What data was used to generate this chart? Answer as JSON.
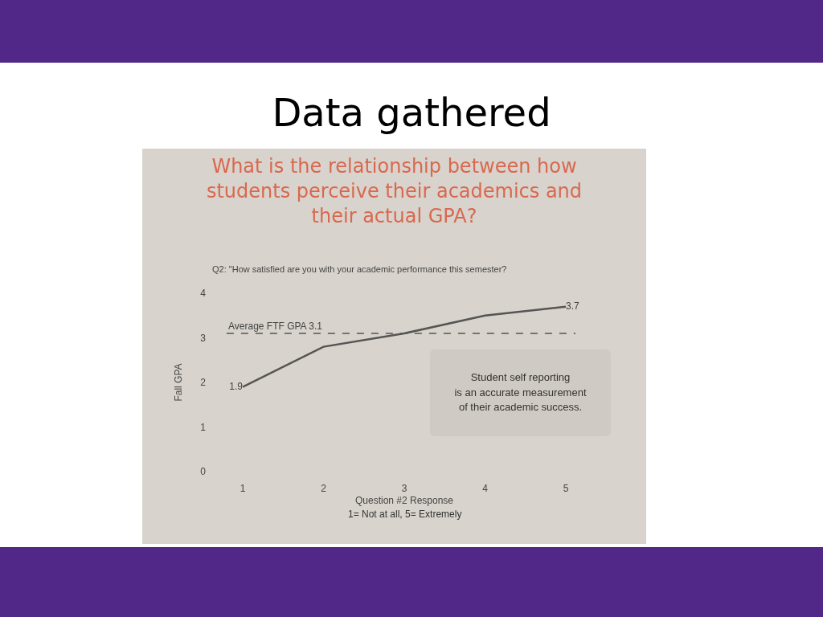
{
  "chart_data": {
    "type": "line",
    "title": "Data gathered",
    "subtitle": "What is the relationship between how\nstudents perceive their academics and\ntheir actual GPA?",
    "xlabel": "Question #2 Response",
    "ylabel": "Fall GPA",
    "x": [
      1,
      2,
      3,
      4,
      5
    ],
    "series": [
      {
        "color": "#555555",
        "values": [
          1.9,
          2.8,
          3.1,
          3.5,
          3.7
        ],
        "value_labels": [
          "1.9",
          null,
          null,
          null,
          "3.7"
        ]
      }
    ],
    "xlim": [
      1,
      5
    ],
    "xticks": [
      1,
      2,
      3,
      4,
      5
    ],
    "ylim": [
      0,
      4
    ],
    "yticks": [
      0,
      1,
      2,
      3,
      4
    ],
    "ref_lines": [
      {
        "axis": "y",
        "value": 3.1,
        "label": "Average FTF GPA 3.1",
        "color": "#555555",
        "line_style": "dashed"
      }
    ],
    "annotations": [
      "Q2: \"How satisfied are you with your academic performance this semester?",
      "1= Not at all, 5= Extremely",
      "Student self reporting\nis an accurate measurement\nof their academic success."
    ],
    "grid": false,
    "marker": "none",
    "line_style": "solid"
  }
}
